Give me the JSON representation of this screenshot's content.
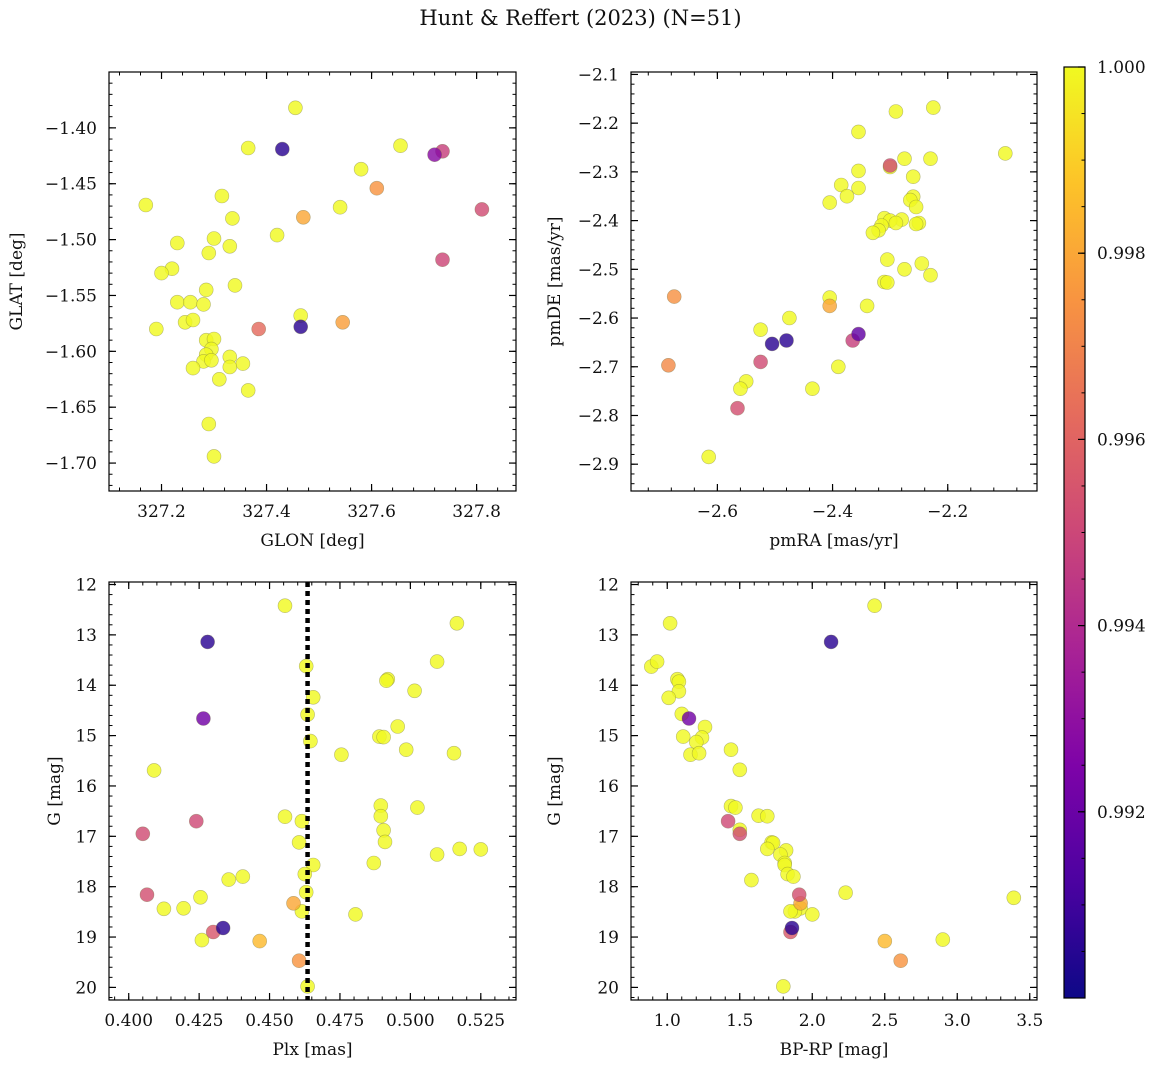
{
  "figure": {
    "title": "Hunt & Reffert (2023) (N=51)"
  },
  "colorbar": {
    "min": 0.99,
    "max": 1.0,
    "ticks": [
      "0.992",
      "0.994",
      "0.996",
      "0.998",
      "1.000"
    ],
    "tick_values": [
      0.992,
      0.994,
      0.996,
      0.998,
      1.0
    ],
    "colormap": "plasma"
  },
  "chart_data": [
    {
      "type": "scatter",
      "xlabel": "GLON [deg]",
      "ylabel": "GLAT [deg]",
      "xlim": [
        327.1,
        327.875
      ],
      "ylim": [
        -1.725,
        -1.35
      ],
      "x_ticks": [
        327.2,
        327.4,
        327.6,
        327.8
      ],
      "x_tick_labels": [
        "327.2",
        "327.4",
        "327.6",
        "327.8"
      ],
      "y_ticks": [
        -1.4,
        -1.45,
        -1.5,
        -1.55,
        -1.6,
        -1.65,
        -1.7
      ],
      "y_tick_labels": [
        "−1.40",
        "−1.45",
        "−1.50",
        "−1.55",
        "−1.60",
        "−1.65",
        "−1.70"
      ],
      "points": [
        [
          327.455,
          -1.382,
          1.0
        ],
        [
          327.365,
          -1.418,
          1.0
        ],
        [
          327.655,
          -1.416,
          1.0
        ],
        [
          327.58,
          -1.437,
          1.0
        ],
        [
          327.315,
          -1.461,
          1.0
        ],
        [
          327.17,
          -1.469,
          1.0
        ],
        [
          327.54,
          -1.471,
          1.0
        ],
        [
          327.47,
          -1.48,
          0.998
        ],
        [
          327.61,
          -1.454,
          0.9975
        ],
        [
          327.335,
          -1.481,
          1.0
        ],
        [
          327.42,
          -1.496,
          1.0
        ],
        [
          327.3,
          -1.499,
          1.0
        ],
        [
          327.23,
          -1.503,
          1.0
        ],
        [
          327.33,
          -1.506,
          1.0
        ],
        [
          327.29,
          -1.512,
          1.0
        ],
        [
          327.22,
          -1.526,
          1.0
        ],
        [
          327.2,
          -1.53,
          1.0
        ],
        [
          327.34,
          -1.541,
          1.0
        ],
        [
          327.285,
          -1.545,
          1.0
        ],
        [
          327.23,
          -1.556,
          1.0
        ],
        [
          327.255,
          -1.556,
          1.0
        ],
        [
          327.28,
          -1.558,
          1.0
        ],
        [
          327.465,
          -1.568,
          1.0
        ],
        [
          327.245,
          -1.574,
          1.0
        ],
        [
          327.26,
          -1.572,
          1.0
        ],
        [
          327.19,
          -1.58,
          1.0
        ],
        [
          327.285,
          -1.59,
          1.0
        ],
        [
          327.3,
          -1.589,
          1.0
        ],
        [
          327.295,
          -1.598,
          1.0
        ],
        [
          327.285,
          -1.603,
          1.0
        ],
        [
          327.33,
          -1.605,
          1.0
        ],
        [
          327.28,
          -1.609,
          1.0
        ],
        [
          327.295,
          -1.608,
          1.0
        ],
        [
          327.355,
          -1.611,
          1.0
        ],
        [
          327.33,
          -1.614,
          1.0
        ],
        [
          327.26,
          -1.615,
          1.0
        ],
        [
          327.31,
          -1.625,
          1.0
        ],
        [
          327.365,
          -1.635,
          1.0
        ],
        [
          327.29,
          -1.665,
          1.0
        ],
        [
          327.3,
          -1.694,
          1.0
        ],
        [
          327.385,
          -1.58,
          0.9962
        ],
        [
          327.545,
          -1.574,
          0.9978
        ],
        [
          327.735,
          -1.421,
          0.9948
        ],
        [
          327.72,
          -1.424,
          0.9928
        ],
        [
          327.81,
          -1.473,
          0.9952
        ],
        [
          327.735,
          -1.518,
          0.995
        ],
        [
          327.43,
          -1.419,
          0.9906
        ],
        [
          327.465,
          -1.578,
          0.9906
        ]
      ]
    },
    {
      "type": "scatter",
      "xlabel": "pmRA [mas/yr]",
      "ylabel": "pmDE [mas/yr]",
      "xlim": [
        -2.75,
        -2.045
      ],
      "ylim": [
        -2.955,
        -2.095
      ],
      "x_ticks": [
        -2.6,
        -2.4,
        -2.2
      ],
      "x_tick_labels": [
        "−2.6",
        "−2.4",
        "−2.2"
      ],
      "y_ticks": [
        -2.1,
        -2.2,
        -2.3,
        -2.4,
        -2.5,
        -2.6,
        -2.7,
        -2.8,
        -2.9
      ],
      "y_tick_labels": [
        "−2.1",
        "−2.2",
        "−2.3",
        "−2.4",
        "−2.5",
        "−2.6",
        "−2.7",
        "−2.8",
        "−2.9"
      ],
      "points": [
        [
          -2.225,
          -2.168,
          1.0
        ],
        [
          -2.29,
          -2.176,
          1.0
        ],
        [
          -2.355,
          -2.218,
          1.0
        ],
        [
          -2.1,
          -2.262,
          1.0
        ],
        [
          -2.23,
          -2.273,
          1.0
        ],
        [
          -2.275,
          -2.273,
          1.0
        ],
        [
          -2.3,
          -2.29,
          1.0
        ],
        [
          -2.355,
          -2.298,
          1.0
        ],
        [
          -2.26,
          -2.31,
          1.0
        ],
        [
          -2.385,
          -2.327,
          1.0
        ],
        [
          -2.355,
          -2.333,
          1.0
        ],
        [
          -2.375,
          -2.35,
          1.0
        ],
        [
          -2.26,
          -2.351,
          1.0
        ],
        [
          -2.265,
          -2.358,
          1.0
        ],
        [
          -2.405,
          -2.363,
          1.0
        ],
        [
          -2.255,
          -2.372,
          1.0
        ],
        [
          -2.31,
          -2.395,
          1.0
        ],
        [
          -2.28,
          -2.398,
          1.0
        ],
        [
          -2.3,
          -2.4,
          1.0
        ],
        [
          -2.29,
          -2.405,
          1.0
        ],
        [
          -2.25,
          -2.405,
          1.0
        ],
        [
          -2.255,
          -2.407,
          1.0
        ],
        [
          -2.315,
          -2.41,
          1.0
        ],
        [
          -2.32,
          -2.42,
          1.0
        ],
        [
          -2.33,
          -2.425,
          1.0
        ],
        [
          -2.305,
          -2.48,
          1.0
        ],
        [
          -2.245,
          -2.488,
          1.0
        ],
        [
          -2.275,
          -2.5,
          1.0
        ],
        [
          -2.23,
          -2.512,
          1.0
        ],
        [
          -2.31,
          -2.526,
          1.0
        ],
        [
          -2.305,
          -2.527,
          1.0
        ],
        [
          -2.34,
          -2.575,
          1.0
        ],
        [
          -2.405,
          -2.558,
          1.0
        ],
        [
          -2.475,
          -2.6,
          1.0
        ],
        [
          -2.525,
          -2.624,
          1.0
        ],
        [
          -2.39,
          -2.7,
          1.0
        ],
        [
          -2.55,
          -2.73,
          1.0
        ],
        [
          -2.56,
          -2.745,
          1.0
        ],
        [
          -2.435,
          -2.745,
          1.0
        ],
        [
          -2.615,
          -2.885,
          1.0
        ],
        [
          -2.405,
          -2.575,
          0.998
        ],
        [
          -2.675,
          -2.556,
          0.9974
        ],
        [
          -2.685,
          -2.697,
          0.9972
        ],
        [
          -2.525,
          -2.69,
          0.9952
        ],
        [
          -2.565,
          -2.785,
          0.9953
        ],
        [
          -2.365,
          -2.646,
          0.9948
        ],
        [
          -2.3,
          -2.287,
          0.9952
        ],
        [
          -2.355,
          -2.633,
          0.9918
        ],
        [
          -2.505,
          -2.653,
          0.9906
        ],
        [
          -2.48,
          -2.646,
          0.9906
        ]
      ]
    },
    {
      "type": "scatter",
      "xlabel": "Plx [mas]",
      "ylabel": "G [mag]",
      "xlim": [
        0.393,
        0.5375
      ],
      "ylim": [
        20.25,
        11.95
      ],
      "x_ticks": [
        0.4,
        0.425,
        0.45,
        0.475,
        0.5,
        0.525
      ],
      "x_tick_labels": [
        "0.400",
        "0.425",
        "0.450",
        "0.475",
        "0.500",
        "0.525"
      ],
      "y_ticks": [
        12,
        13,
        14,
        15,
        16,
        17,
        18,
        19,
        20
      ],
      "y_tick_labels": [
        "12",
        "13",
        "14",
        "15",
        "16",
        "17",
        "18",
        "19",
        "20"
      ],
      "vline": 0.4635,
      "points": [
        [
          0.4555,
          12.42,
          1.0
        ],
        [
          0.5165,
          12.77,
          1.0
        ],
        [
          0.463,
          13.62,
          1.0
        ],
        [
          0.5095,
          13.53,
          1.0
        ],
        [
          0.492,
          13.88,
          1.0
        ],
        [
          0.4915,
          13.91,
          1.0
        ],
        [
          0.5015,
          14.11,
          1.0
        ],
        [
          0.4655,
          14.24,
          1.0
        ],
        [
          0.4635,
          14.58,
          1.0
        ],
        [
          0.4955,
          14.82,
          1.0
        ],
        [
          0.489,
          15.02,
          1.0
        ],
        [
          0.4905,
          15.03,
          1.0
        ],
        [
          0.4645,
          15.11,
          1.0
        ],
        [
          0.4985,
          15.28,
          1.0
        ],
        [
          0.4755,
          15.38,
          1.0
        ],
        [
          0.5155,
          15.35,
          1.0
        ],
        [
          0.409,
          15.69,
          1.0
        ],
        [
          0.4895,
          16.39,
          1.0
        ],
        [
          0.5025,
          16.43,
          1.0
        ],
        [
          0.4895,
          16.6,
          1.0
        ],
        [
          0.4555,
          16.61,
          1.0
        ],
        [
          0.4615,
          16.7,
          1.0
        ],
        [
          0.4905,
          16.88,
          1.0
        ],
        [
          0.4605,
          17.12,
          1.0
        ],
        [
          0.491,
          17.11,
          1.0
        ],
        [
          0.5175,
          17.25,
          1.0
        ],
        [
          0.525,
          17.26,
          1.0
        ],
        [
          0.5095,
          17.36,
          1.0
        ],
        [
          0.487,
          17.53,
          1.0
        ],
        [
          0.4655,
          17.57,
          1.0
        ],
        [
          0.4625,
          17.75,
          1.0
        ],
        [
          0.4405,
          17.8,
          1.0
        ],
        [
          0.4355,
          17.86,
          1.0
        ],
        [
          0.463,
          18.11,
          1.0
        ],
        [
          0.4255,
          18.21,
          1.0
        ],
        [
          0.4125,
          18.44,
          1.0
        ],
        [
          0.4195,
          18.43,
          1.0
        ],
        [
          0.4615,
          18.49,
          1.0
        ],
        [
          0.4805,
          18.55,
          1.0
        ],
        [
          0.426,
          19.06,
          1.0
        ],
        [
          0.4635,
          19.98,
          1.0
        ],
        [
          0.4585,
          18.33,
          0.998
        ],
        [
          0.4465,
          19.08,
          0.9985
        ],
        [
          0.4605,
          19.47,
          0.9975
        ],
        [
          0.43,
          18.9,
          0.9956
        ],
        [
          0.405,
          16.95,
          0.9952
        ],
        [
          0.4065,
          18.16,
          0.9953
        ],
        [
          0.424,
          16.7,
          0.9951
        ],
        [
          0.4265,
          14.66,
          0.9922
        ],
        [
          0.428,
          13.14,
          0.9906
        ],
        [
          0.4335,
          18.82,
          0.9906
        ]
      ]
    },
    {
      "type": "scatter",
      "xlabel": "BP-RP [mag]",
      "ylabel": "G [mag]",
      "xlim": [
        0.75,
        3.55
      ],
      "ylim": [
        20.25,
        11.95
      ],
      "x_ticks": [
        1.0,
        1.5,
        2.0,
        2.5,
        3.0,
        3.5
      ],
      "x_tick_labels": [
        "1.0",
        "1.5",
        "2.0",
        "2.5",
        "3.0",
        "3.5"
      ],
      "y_ticks": [
        12,
        13,
        14,
        15,
        16,
        17,
        18,
        19,
        20
      ],
      "y_tick_labels": [
        "12",
        "13",
        "14",
        "15",
        "16",
        "17",
        "18",
        "19",
        "20"
      ],
      "points": [
        [
          2.43,
          12.42,
          1.0
        ],
        [
          1.02,
          12.77,
          1.0
        ],
        [
          0.89,
          13.63,
          1.0
        ],
        [
          0.93,
          13.53,
          1.0
        ],
        [
          1.07,
          13.88,
          1.0
        ],
        [
          1.08,
          13.93,
          1.0
        ],
        [
          1.08,
          14.12,
          1.0
        ],
        [
          1.01,
          14.25,
          1.0
        ],
        [
          1.1,
          14.57,
          1.0
        ],
        [
          1.26,
          14.83,
          1.0
        ],
        [
          1.11,
          15.02,
          1.0
        ],
        [
          1.24,
          15.04,
          1.0
        ],
        [
          1.2,
          15.13,
          1.0
        ],
        [
          1.44,
          15.28,
          1.0
        ],
        [
          1.16,
          15.38,
          1.0
        ],
        [
          1.22,
          15.35,
          1.0
        ],
        [
          1.5,
          15.68,
          1.0
        ],
        [
          1.44,
          16.4,
          1.0
        ],
        [
          1.47,
          16.43,
          1.0
        ],
        [
          1.63,
          16.59,
          1.0
        ],
        [
          1.69,
          16.6,
          1.0
        ],
        [
          1.5,
          16.87,
          1.0
        ],
        [
          1.72,
          17.12,
          1.0
        ],
        [
          1.73,
          17.13,
          1.0
        ],
        [
          1.69,
          17.25,
          1.0
        ],
        [
          1.82,
          17.28,
          1.0
        ],
        [
          1.78,
          17.36,
          1.0
        ],
        [
          1.81,
          17.53,
          1.0
        ],
        [
          1.81,
          17.57,
          1.0
        ],
        [
          1.83,
          17.75,
          1.0
        ],
        [
          1.87,
          17.8,
          1.0
        ],
        [
          1.58,
          17.87,
          1.0
        ],
        [
          2.23,
          18.12,
          1.0
        ],
        [
          3.39,
          18.22,
          1.0
        ],
        [
          1.92,
          18.43,
          1.0
        ],
        [
          1.88,
          18.49,
          1.0
        ],
        [
          2.0,
          18.55,
          1.0
        ],
        [
          1.85,
          18.49,
          1.0
        ],
        [
          2.9,
          19.05,
          1.0
        ],
        [
          1.8,
          19.98,
          1.0
        ],
        [
          1.92,
          18.33,
          0.998
        ],
        [
          2.5,
          19.08,
          0.9985
        ],
        [
          2.61,
          19.47,
          0.9975
        ],
        [
          1.85,
          18.9,
          0.9956
        ],
        [
          1.5,
          16.95,
          0.9952
        ],
        [
          1.91,
          18.16,
          0.9953
        ],
        [
          1.42,
          16.7,
          0.9951
        ],
        [
          1.15,
          14.66,
          0.9922
        ],
        [
          2.13,
          13.14,
          0.9906
        ],
        [
          1.86,
          18.82,
          0.9906
        ]
      ]
    }
  ]
}
